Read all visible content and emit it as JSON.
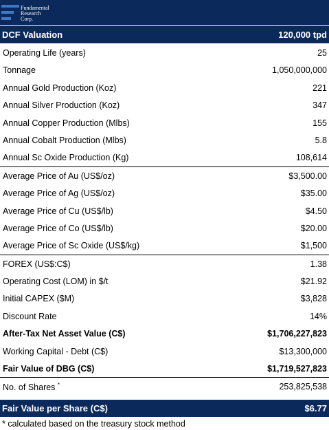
{
  "logo": {
    "line1": "Fundamental",
    "line2": "Research",
    "line3": "Corp."
  },
  "header": {
    "title": "DCF Valuation",
    "capacity": "120,000 tpd"
  },
  "rows": [
    {
      "label": "Operating Life (years)",
      "value": "25"
    },
    {
      "label": "Tonnage",
      "value": "1,050,000,000"
    },
    {
      "label": "Annual Gold Production (Koz)",
      "value": "221"
    },
    {
      "label": "Annual Silver Production (Koz)",
      "value": "347"
    },
    {
      "label": "Annual Copper Production (Mlbs)",
      "value": "155"
    },
    {
      "label": "Annual Cobalt Production (Mlbs)",
      "value": "5.8"
    },
    {
      "label": "Annual Sc Oxide Production (Kg)",
      "value": "108,614"
    },
    {
      "label": "Average Price of Au (US$/oz)",
      "value": "$3,500.00"
    },
    {
      "label": "Average Price of Ag (US$/oz)",
      "value": "$35.00"
    },
    {
      "label": "Average Price of Cu (US$/lb)",
      "value": "$4.50"
    },
    {
      "label": "Average Price of Co (US$/lb)",
      "value": "$20.00"
    },
    {
      "label": "Average Price of Sc Oxide (US$/kg)",
      "value": "$1,500"
    },
    {
      "label": "FOREX (US$:C$)",
      "value": "1.38"
    },
    {
      "label": "Operating Cost (LOM) in $/t",
      "value": "$21.92"
    },
    {
      "label": "Initial CAPEX ($M)",
      "value": "$3,828"
    },
    {
      "label": "Discount Rate",
      "value": "14%"
    },
    {
      "label": "After-Tax Net Asset Value (C$)",
      "value": "$1,706,227,823"
    },
    {
      "label": "Working Capital - Debt (C$)",
      "value": "$13,300,000"
    },
    {
      "label": "Fair Value of DBG (C$)",
      "value": "$1,719,527,823"
    },
    {
      "label": "No. of Shares",
      "value": "253,825,538",
      "marker": "*"
    }
  ],
  "footer": {
    "label": "Fair Value per Share (C$)",
    "value": "$6.77"
  },
  "note": "* calculated based on the treasury stock method"
}
